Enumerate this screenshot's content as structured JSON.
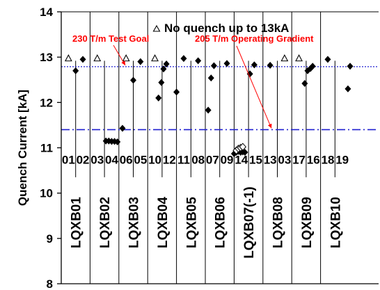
{
  "chart_data": {
    "type": "scatter",
    "ylabel": "Quench Current [kA]",
    "ylim": [
      8,
      14
    ],
    "yticks": [
      8,
      9,
      10,
      11,
      12,
      13,
      14
    ],
    "legend": {
      "symbol": "△",
      "text": "No quench up to 13kA",
      "position": "top"
    },
    "reference_lines": [
      {
        "label": "230 T/m Test Goal",
        "value": 12.79,
        "style": "dotted",
        "color": "#1f1fd0"
      },
      {
        "label": "205 T/m Operating Gradient",
        "value": 11.4,
        "style": "dash-dot",
        "color": "#1f1fd0"
      }
    ],
    "magnet_labels": [
      "01",
      "02",
      "03",
      "04",
      "06",
      "05",
      "10",
      "12",
      "11",
      "08",
      "07",
      "09",
      "14",
      "15",
      "13",
      "03",
      "17",
      "16",
      "18",
      "19"
    ],
    "module_labels": [
      "LQXB01",
      "LQXB02",
      "LQXB03",
      "LQXB04",
      "LQXB05",
      "LQXB06",
      "LQXB07(-1)",
      "LQXB08",
      "LQXB09",
      "LQXB10"
    ],
    "series": [
      {
        "symbol": "diamond",
        "points": [
          {
            "x": 1,
            "y": 12.7
          },
          {
            "x": 1.5,
            "y": 12.95
          },
          {
            "x": 3.1,
            "y": 11.15
          },
          {
            "x": 3.3,
            "y": 11.15
          },
          {
            "x": 3.5,
            "y": 11.14
          },
          {
            "x": 3.7,
            "y": 11.14
          },
          {
            "x": 3.9,
            "y": 11.13
          },
          {
            "x": 4.25,
            "y": 11.43
          },
          {
            "x": 5,
            "y": 12.49
          },
          {
            "x": 5.5,
            "y": 12.9
          },
          {
            "x": 6.75,
            "y": 12.1
          },
          {
            "x": 6.95,
            "y": 12.44
          },
          {
            "x": 7.1,
            "y": 12.74
          },
          {
            "x": 7.3,
            "y": 12.85
          },
          {
            "x": 8,
            "y": 12.23
          },
          {
            "x": 8.5,
            "y": 12.97
          },
          {
            "x": 9.5,
            "y": 12.92
          },
          {
            "x": 10.2,
            "y": 11.83
          },
          {
            "x": 10.4,
            "y": 12.54
          },
          {
            "x": 10.6,
            "y": 12.81
          },
          {
            "x": 11.5,
            "y": 12.86
          },
          {
            "x": 12.0,
            "y": 10.87
          },
          {
            "x": 12.15,
            "y": 10.9
          },
          {
            "x": 12.3,
            "y": 10.92
          },
          {
            "x": 12.45,
            "y": 10.9
          },
          {
            "x": 12.6,
            "y": 10.91
          },
          {
            "x": 12.75,
            "y": 10.9
          },
          {
            "x": 13.1,
            "y": 12.63
          },
          {
            "x": 13.4,
            "y": 12.83
          },
          {
            "x": 14.5,
            "y": 12.82
          },
          {
            "x": 16.9,
            "y": 12.42
          },
          {
            "x": 17.1,
            "y": 12.7
          },
          {
            "x": 17.3,
            "y": 12.75
          },
          {
            "x": 17.45,
            "y": 12.8
          },
          {
            "x": 18.5,
            "y": 12.95
          },
          {
            "x": 19.9,
            "y": 12.3
          },
          {
            "x": 20.05,
            "y": 12.8
          }
        ]
      },
      {
        "symbol": "open-diamond",
        "points": [
          {
            "x": 12.15,
            "y": 10.94
          },
          {
            "x": 12.3,
            "y": 10.98
          },
          {
            "x": 12.45,
            "y": 11.0
          },
          {
            "x": 12.6,
            "y": 11.02
          }
        ]
      },
      {
        "symbol": "triangle",
        "points": [
          {
            "x": 0.5,
            "y": 12.97
          },
          {
            "x": 2.5,
            "y": 12.97
          },
          {
            "x": 4.5,
            "y": 12.97
          },
          {
            "x": 6.5,
            "y": 12.97
          },
          {
            "x": 15.5,
            "y": 12.97
          },
          {
            "x": 16.5,
            "y": 12.97
          }
        ]
      }
    ]
  }
}
